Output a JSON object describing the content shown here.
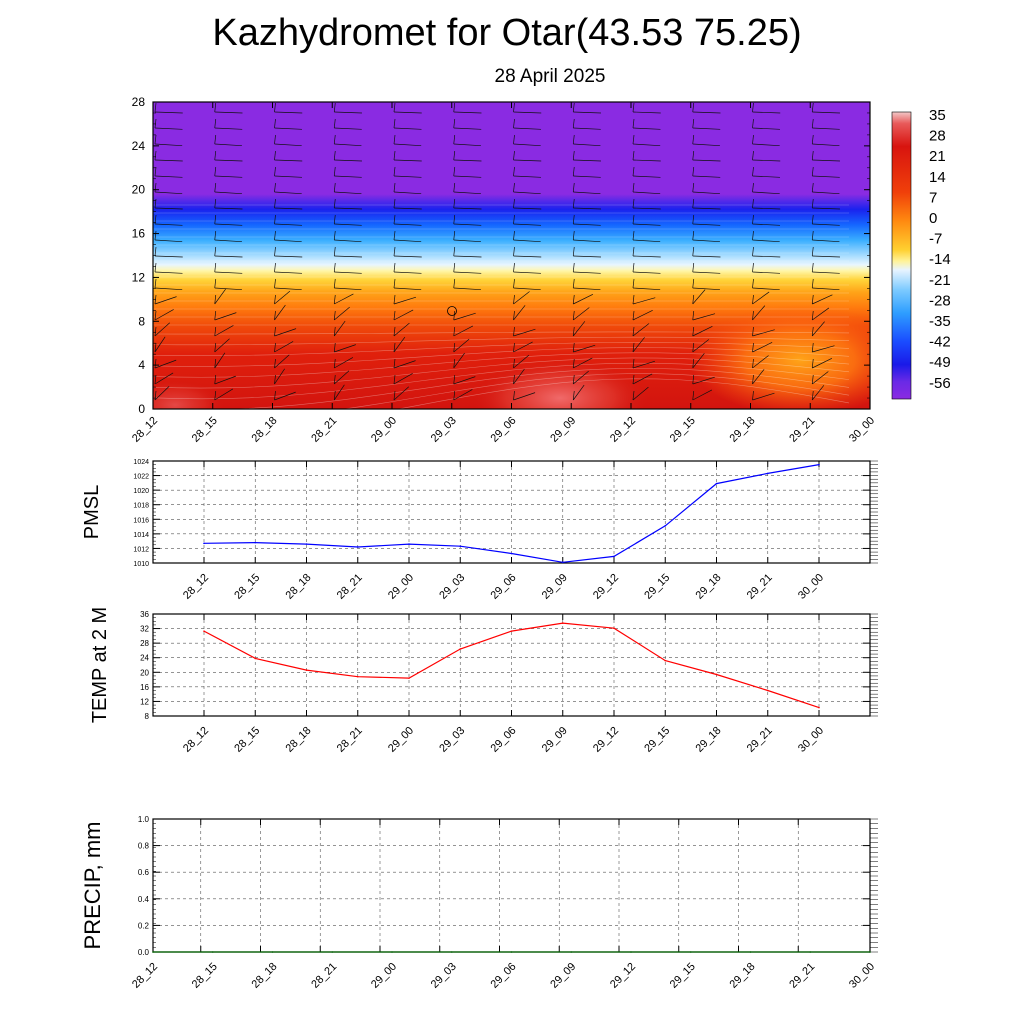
{
  "title": "Kazhydromet for Otar(43.53 75.25)",
  "subtitle": "28 April 2025",
  "chart_data": [
    {
      "type": "heatmap",
      "description_of_field": "temperature cross-section with wind barbs",
      "x_categories": [
        "28_12",
        "28_15",
        "28_18",
        "28_21",
        "29_00",
        "29_03",
        "29_06",
        "29_09",
        "29_12",
        "29_15",
        "29_18",
        "29_21",
        "30_00"
      ],
      "ylim": [
        0,
        28
      ],
      "yticks": [
        "0",
        "4",
        "8",
        "12",
        "16",
        "20",
        "24",
        "28"
      ],
      "colorbar_labels": [
        "35",
        "28",
        "21",
        "14",
        "7",
        "0",
        "-7",
        "-14",
        "-21",
        "-28",
        "-35",
        "-42",
        "-49",
        "-56"
      ],
      "colors": {
        "cold_top": "#8a2be2",
        "deep_blue": "#1a1aff",
        "sky_blue": "#3aa8ff",
        "pale": "#eef8ff",
        "yellow": "#ffe040",
        "orange": "#ff9a10",
        "red": "#e8200a",
        "dark_red": "#c80f0f",
        "pinkish": "#f06060"
      }
    },
    {
      "type": "line",
      "ylabel": "PMSL",
      "x": [
        "28_12",
        "28_15",
        "28_18",
        "28_21",
        "29_00",
        "29_03",
        "29_06",
        "29_09",
        "29_12",
        "29_15",
        "29_18",
        "29_21",
        "30_00"
      ],
      "values": [
        1012.7,
        1012.8,
        1012.6,
        1012.2,
        1012.6,
        1012.3,
        1011.3,
        1010.1,
        1010.9,
        1015.1,
        1020.9,
        1022.3,
        1023.5
      ],
      "ylim": [
        1010,
        1024
      ],
      "yticks": [
        "1010",
        "1012",
        "1014",
        "1016",
        "1018",
        "1020",
        "1022",
        "1024"
      ],
      "color": "#0000ff",
      "grid": true
    },
    {
      "type": "line",
      "ylabel": "TEMP at 2 M",
      "x": [
        "28_12",
        "28_15",
        "28_18",
        "28_21",
        "29_00",
        "29_03",
        "29_06",
        "29_09",
        "29_12",
        "29_15",
        "29_18",
        "29_21",
        "30_00"
      ],
      "values": [
        31.3,
        23.8,
        20.6,
        18.8,
        18.4,
        26.4,
        31.3,
        33.5,
        32.1,
        23.2,
        19.4,
        15.0,
        10.3
      ],
      "ylim": [
        8,
        36
      ],
      "yticks": [
        "8",
        "12",
        "16",
        "20",
        "24",
        "28",
        "32",
        "36"
      ],
      "color": "#ff0000",
      "grid": true
    },
    {
      "type": "line",
      "ylabel": "PRECIP, mm",
      "x": [
        "28_12",
        "28_15",
        "28_18",
        "28_21",
        "29_00",
        "29_03",
        "29_06",
        "29_09",
        "29_12",
        "29_15",
        "29_18",
        "29_21",
        "30_00"
      ],
      "values": [
        0,
        0,
        0,
        0,
        0,
        0,
        0,
        0,
        0,
        0,
        0,
        0,
        0
      ],
      "ylim": [
        0,
        1.0
      ],
      "yticks": [
        "0.0",
        "0.2",
        "0.4",
        "0.6",
        "0.8",
        "1.0"
      ],
      "color": "#006400",
      "grid": true
    }
  ]
}
